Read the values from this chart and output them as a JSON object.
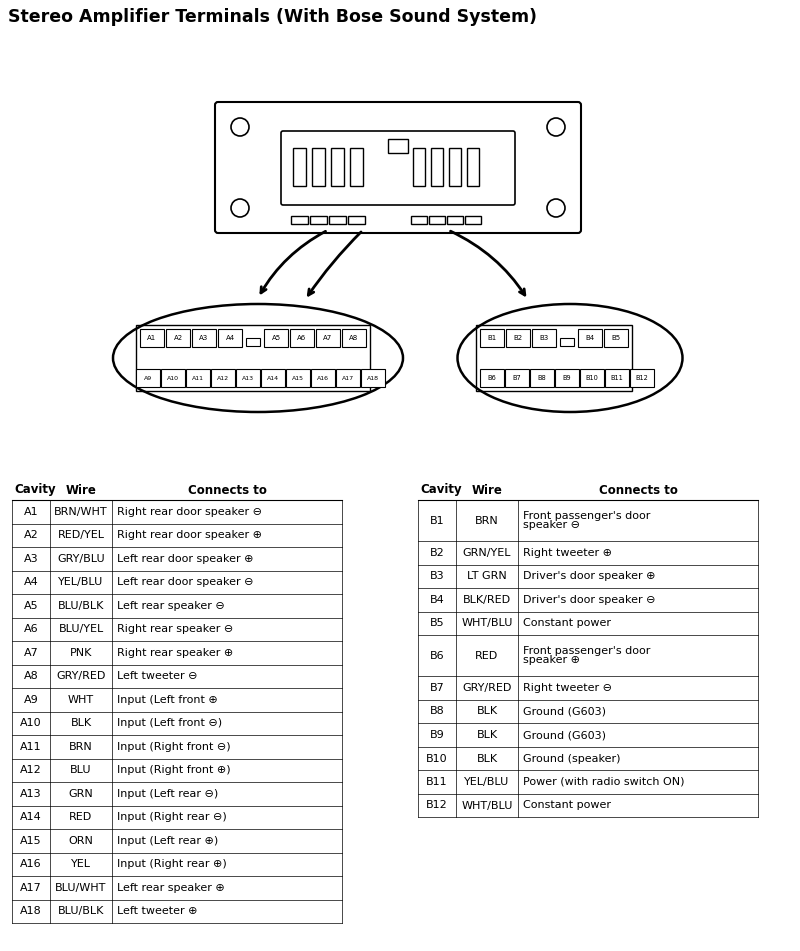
{
  "title": "Stereo Amplifier Terminals (With Bose Sound System)",
  "background_color": "#ffffff",
  "table_a_headers": [
    "Cavity",
    "Wire",
    "Connects to"
  ],
  "table_a_data": [
    [
      "A1",
      "BRN/WHT",
      "Right rear door speaker ⊖"
    ],
    [
      "A2",
      "RED/YEL",
      "Right rear door speaker ⊕"
    ],
    [
      "A3",
      "GRY/BLU",
      "Left rear door speaker ⊕"
    ],
    [
      "A4",
      "YEL/BLU",
      "Left rear door speaker ⊖"
    ],
    [
      "A5",
      "BLU/BLK",
      "Left rear speaker ⊖"
    ],
    [
      "A6",
      "BLU/YEL",
      "Right rear speaker ⊖"
    ],
    [
      "A7",
      "PNK",
      "Right rear speaker ⊕"
    ],
    [
      "A8",
      "GRY/RED",
      "Left tweeter ⊖"
    ],
    [
      "A9",
      "WHT",
      "Input (Left front ⊕"
    ],
    [
      "A10",
      "BLK",
      "Input (Left front ⊖)"
    ],
    [
      "A11",
      "BRN",
      "Input (Right front ⊖)"
    ],
    [
      "A12",
      "BLU",
      "Input (Right front ⊕)"
    ],
    [
      "A13",
      "GRN",
      "Input (Left rear ⊖)"
    ],
    [
      "A14",
      "RED",
      "Input (Right rear ⊖)"
    ],
    [
      "A15",
      "ORN",
      "Input (Left rear ⊕)"
    ],
    [
      "A16",
      "YEL",
      "Input (Right rear ⊕)"
    ],
    [
      "A17",
      "BLU/WHT",
      "Left rear speaker ⊕"
    ],
    [
      "A18",
      "BLU/BLK",
      "Left tweeter ⊕"
    ]
  ],
  "table_b_headers": [
    "Cavity",
    "Wire",
    "Connects to"
  ],
  "table_b_data": [
    [
      "B1",
      "BRN",
      "Front passenger's door\nspeaker ⊖"
    ],
    [
      "B2",
      "GRN/YEL",
      "Right tweeter ⊕"
    ],
    [
      "B3",
      "LT GRN",
      "Driver's door speaker ⊕"
    ],
    [
      "B4",
      "BLK/RED",
      "Driver's door speaker ⊖"
    ],
    [
      "B5",
      "WHT/BLU",
      "Constant power"
    ],
    [
      "B6",
      "RED",
      "Front passenger's door\nspeaker ⊕"
    ],
    [
      "B7",
      "GRY/RED",
      "Right tweeter ⊖"
    ],
    [
      "B8",
      "BLK",
      "Ground (G603)"
    ],
    [
      "B9",
      "BLK",
      "Ground (G603)"
    ],
    [
      "B10",
      "BLK",
      "Ground (speaker)"
    ],
    [
      "B11",
      "YEL/BLU",
      "Power (with radio switch ON)"
    ],
    [
      "B12",
      "WHT/BLU",
      "Constant power"
    ]
  ]
}
